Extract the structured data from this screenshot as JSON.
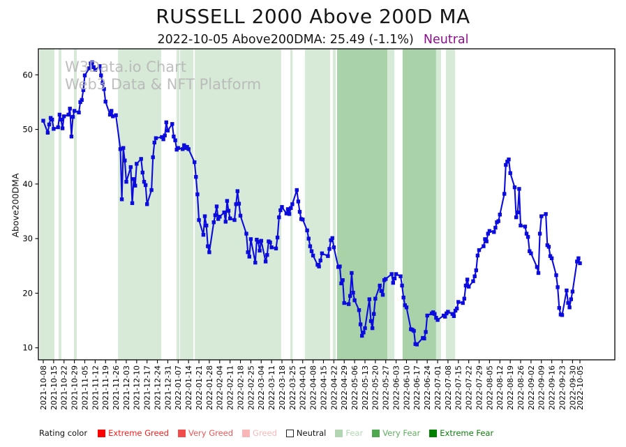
{
  "title": "RUSSELL 2000 Above 200D MA",
  "subtitle": {
    "text": "2022-10-05 Above200DMA: 25.49 (-1.1%)",
    "rating_label": "Neutral",
    "rating_color": "#8b0f8b"
  },
  "watermark": {
    "line1": "W3Data.io Chart",
    "line2": "Web3 Data & NFT Platform"
  },
  "axes": {
    "y_label": "Above200DMA",
    "y_ticks": [
      10,
      20,
      30,
      40,
      50,
      60
    ],
    "x_tick_labels": [
      "2021-10-08",
      "2021-10-15",
      "2021-10-22",
      "2021-10-29",
      "2021-11-05",
      "2021-11-12",
      "2021-11-19",
      "2021-11-26",
      "2021-12-03",
      "2021-12-10",
      "2021-12-17",
      "2021-12-24",
      "2021-12-31",
      "2022-01-07",
      "2022-01-14",
      "2022-01-21",
      "2022-01-28",
      "2022-02-04",
      "2022-02-11",
      "2022-02-18",
      "2022-02-25",
      "2022-03-04",
      "2022-03-11",
      "2022-03-18",
      "2022-03-25",
      "2022-04-01",
      "2022-04-08",
      "2022-04-15",
      "2022-04-22",
      "2022-04-29",
      "2022-05-06",
      "2022-05-13",
      "2022-05-20",
      "2022-05-27",
      "2022-06-03",
      "2022-06-10",
      "2022-06-17",
      "2022-06-24",
      "2022-07-01",
      "2022-07-08",
      "2022-07-15",
      "2022-07-22",
      "2022-07-29",
      "2022-08-05",
      "2022-08-12",
      "2022-08-19",
      "2022-08-26",
      "2022-09-02",
      "2022-09-09",
      "2022-09-16",
      "2022-09-23",
      "2022-09-30",
      "2022-10-05"
    ]
  },
  "legend": {
    "title": "Rating color",
    "items": [
      {
        "label": "Extreme Greed",
        "swatch": "#fe0000",
        "text_color": "#fe1a1a",
        "outlined": false
      },
      {
        "label": "Very Greed",
        "swatch": "#f24b4b",
        "text_color": "#f25555",
        "outlined": false
      },
      {
        "label": "Greed",
        "swatch": "#f9b6b6",
        "text_color": "#f9b6b6",
        "outlined": false
      },
      {
        "label": "Neutral",
        "swatch": "#ffffff",
        "text_color": "#111111",
        "outlined": true
      },
      {
        "label": "Fear",
        "swatch": "#b2d6b2",
        "text_color": "#b2d6b2",
        "outlined": false
      },
      {
        "label": "Very Fear",
        "swatch": "#4fa84f",
        "text_color": "#5fae5f",
        "outlined": false
      },
      {
        "label": "Extreme Fear",
        "swatch": "#008000",
        "text_color": "#0b800b",
        "outlined": false
      }
    ]
  },
  "chart_data": {
    "type": "line",
    "title": "RUSSELL 2000 Above 200D MA",
    "xlabel": "",
    "ylabel": "Above200DMA",
    "ylim": [
      7.8,
      64.8
    ],
    "x_unit": "days_since_2021-10-08",
    "last_point": {
      "date": "2022-10-05",
      "value": 25.49,
      "change_pct": -1.1,
      "rating": "Neutral"
    },
    "line_color": "#0b0bdd",
    "marker": "square",
    "grid": false,
    "band_colors": {
      "Fear": "#d7e9d7",
      "Very Fear": "#a9d2a9"
    },
    "background_bands": [
      {
        "start_day": -2.4,
        "end_day": 7.5,
        "rating": "Fear"
      },
      {
        "start_day": 10.4,
        "end_day": 12.2,
        "rating": "Fear"
      },
      {
        "start_day": 20.7,
        "end_day": 22.6,
        "rating": "Fear"
      },
      {
        "start_day": 50.4,
        "end_day": 79.6,
        "rating": "Fear"
      },
      {
        "start_day": 89.9,
        "end_day": 91.8,
        "rating": "Fear"
      },
      {
        "start_day": 92.3,
        "end_day": 101.2,
        "rating": "Fear"
      },
      {
        "start_day": 102.2,
        "end_day": 160.5,
        "rating": "Fear"
      },
      {
        "start_day": 166.6,
        "end_day": 168.2,
        "rating": "Fear"
      },
      {
        "start_day": 176.5,
        "end_day": 193.5,
        "rating": "Fear"
      },
      {
        "start_day": 195.3,
        "end_day": 197.3,
        "rating": "Fear"
      },
      {
        "start_day": 198.2,
        "end_day": 232.1,
        "rating": "Very Fear"
      },
      {
        "start_day": 232.1,
        "end_day": 236.8,
        "rating": "Fear"
      },
      {
        "start_day": 242.4,
        "end_day": 265.0,
        "rating": "Very Fear"
      },
      {
        "start_day": 265.0,
        "end_day": 268.3,
        "rating": "Fear"
      },
      {
        "start_day": 271.6,
        "end_day": 277.8,
        "rating": "Fear"
      }
    ],
    "points": [
      [
        0,
        51.6
      ],
      [
        3,
        49.4
      ],
      [
        4,
        50.9
      ],
      [
        5,
        52.1
      ],
      [
        6,
        51.8
      ],
      [
        7,
        50.1
      ],
      [
        10,
        50.4
      ],
      [
        11,
        52.7
      ],
      [
        12,
        51.8
      ],
      [
        13,
        50.2
      ],
      [
        14,
        52.4
      ],
      [
        17,
        52.7
      ],
      [
        18,
        53.8
      ],
      [
        19,
        48.7
      ],
      [
        20,
        52.3
      ],
      [
        21,
        53.4
      ],
      [
        24,
        53.1
      ],
      [
        25,
        55.0
      ],
      [
        26,
        55.4
      ],
      [
        27,
        57.2
      ],
      [
        28,
        59.9
      ],
      [
        31,
        61.2
      ],
      [
        32,
        62.1
      ],
      [
        33,
        62.3
      ],
      [
        34,
        61.4
      ],
      [
        35,
        60.9
      ],
      [
        38,
        61.6
      ],
      [
        39,
        59.9
      ],
      [
        40,
        58.5
      ],
      [
        41,
        57.4
      ],
      [
        42,
        55.1
      ],
      [
        45,
        52.7
      ],
      [
        46,
        53.4
      ],
      [
        47,
        52.4
      ],
      [
        49,
        52.6
      ],
      [
        52,
        46.4
      ],
      [
        53,
        37.2
      ],
      [
        54,
        46.6
      ],
      [
        55,
        44.3
      ],
      [
        56,
        40.4
      ],
      [
        59,
        43.1
      ],
      [
        60,
        36.5
      ],
      [
        61,
        40.9
      ],
      [
        62,
        39.7
      ],
      [
        63,
        43.7
      ],
      [
        66,
        44.6
      ],
      [
        67,
        42.1
      ],
      [
        68,
        40.4
      ],
      [
        69,
        39.8
      ],
      [
        70,
        36.3
      ],
      [
        73,
        38.9
      ],
      [
        74,
        44.9
      ],
      [
        75,
        47.6
      ],
      [
        76,
        48.4
      ],
      [
        80,
        48.6
      ],
      [
        81,
        48.2
      ],
      [
        82,
        48.9
      ],
      [
        83,
        51.3
      ],
      [
        84,
        49.8
      ],
      [
        87,
        51.0
      ],
      [
        88,
        48.7
      ],
      [
        89,
        48.0
      ],
      [
        90,
        46.3
      ],
      [
        91,
        46.6
      ],
      [
        94,
        46.4
      ],
      [
        95,
        47.1
      ],
      [
        96,
        46.6
      ],
      [
        97,
        46.8
      ],
      [
        98,
        46.4
      ],
      [
        102,
        44.0
      ],
      [
        103,
        41.3
      ],
      [
        104,
        38.1
      ],
      [
        105,
        33.4
      ],
      [
        108,
        30.7
      ],
      [
        109,
        34.1
      ],
      [
        110,
        32.4
      ],
      [
        111,
        28.6
      ],
      [
        112,
        27.5
      ],
      [
        115,
        33.0
      ],
      [
        116,
        34.3
      ],
      [
        117,
        35.9
      ],
      [
        118,
        33.6
      ],
      [
        119,
        34.0
      ],
      [
        122,
        34.8
      ],
      [
        123,
        33.1
      ],
      [
        124,
        36.9
      ],
      [
        125,
        35.1
      ],
      [
        126,
        33.7
      ],
      [
        129,
        33.4
      ],
      [
        130,
        36.3
      ],
      [
        131,
        38.7
      ],
      [
        132,
        36.4
      ],
      [
        133,
        34.2
      ],
      [
        137,
        30.9
      ],
      [
        138,
        27.5
      ],
      [
        139,
        26.7
      ],
      [
        140,
        29.9
      ],
      [
        143,
        25.6
      ],
      [
        144,
        29.8
      ],
      [
        145,
        29.4
      ],
      [
        146,
        27.8
      ],
      [
        147,
        29.6
      ],
      [
        150,
        25.8
      ],
      [
        151,
        27.0
      ],
      [
        152,
        29.5
      ],
      [
        153,
        29.3
      ],
      [
        154,
        28.4
      ],
      [
        157,
        28.2
      ],
      [
        158,
        30.2
      ],
      [
        159,
        33.9
      ],
      [
        160,
        35.2
      ],
      [
        161,
        35.8
      ],
      [
        164,
        34.6
      ],
      [
        165,
        35.4
      ],
      [
        166,
        34.5
      ],
      [
        167,
        35.6
      ],
      [
        168,
        36.3
      ],
      [
        171,
        38.9
      ],
      [
        172,
        36.8
      ],
      [
        173,
        34.9
      ],
      [
        174,
        33.6
      ],
      [
        175,
        33.5
      ],
      [
        178,
        31.5
      ],
      [
        179,
        30.0
      ],
      [
        180,
        28.6
      ],
      [
        181,
        27.7
      ],
      [
        182,
        26.9
      ],
      [
        185,
        25.2
      ],
      [
        186,
        24.9
      ],
      [
        187,
        26.0
      ],
      [
        188,
        27.3
      ],
      [
        192,
        26.8
      ],
      [
        193,
        28.1
      ],
      [
        194,
        29.7
      ],
      [
        195,
        30.1
      ],
      [
        196,
        28.4
      ],
      [
        199,
        24.8
      ],
      [
        200,
        24.9
      ],
      [
        201,
        21.8
      ],
      [
        202,
        22.4
      ],
      [
        203,
        18.2
      ],
      [
        206,
        18.0
      ],
      [
        207,
        19.5
      ],
      [
        208,
        23.7
      ],
      [
        209,
        20.1
      ],
      [
        210,
        18.7
      ],
      [
        213,
        16.9
      ],
      [
        214,
        14.3
      ],
      [
        215,
        12.2
      ],
      [
        216,
        12.8
      ],
      [
        217,
        13.6
      ],
      [
        220,
        18.9
      ],
      [
        221,
        14.9
      ],
      [
        222,
        13.6
      ],
      [
        223,
        16.2
      ],
      [
        224,
        19.0
      ],
      [
        227,
        21.4
      ],
      [
        228,
        20.4
      ],
      [
        229,
        19.7
      ],
      [
        230,
        22.4
      ],
      [
        231,
        22.6
      ],
      [
        235,
        23.5
      ],
      [
        236,
        21.9
      ],
      [
        237,
        22.7
      ],
      [
        238,
        23.5
      ],
      [
        241,
        23.1
      ],
      [
        242,
        21.4
      ],
      [
        243,
        19.2
      ],
      [
        244,
        17.8
      ],
      [
        245,
        17.4
      ],
      [
        248,
        13.4
      ],
      [
        249,
        13.3
      ],
      [
        250,
        13.1
      ],
      [
        251,
        10.7
      ],
      [
        252,
        10.6
      ],
      [
        256,
        11.8
      ],
      [
        257,
        11.7
      ],
      [
        258,
        12.9
      ],
      [
        259,
        15.9
      ],
      [
        262,
        16.3
      ],
      [
        263,
        16.5
      ],
      [
        264,
        16.2
      ],
      [
        265,
        15.5
      ],
      [
        266,
        15.1
      ],
      [
        270,
        15.9
      ],
      [
        271,
        15.7
      ],
      [
        272,
        16.3
      ],
      [
        273,
        16.6
      ],
      [
        276,
        16.2
      ],
      [
        277,
        15.8
      ],
      [
        278,
        16.8
      ],
      [
        279,
        17.2
      ],
      [
        280,
        18.4
      ],
      [
        283,
        18.2
      ],
      [
        284,
        19.0
      ],
      [
        285,
        21.4
      ],
      [
        286,
        22.5
      ],
      [
        287,
        21.2
      ],
      [
        290,
        22.2
      ],
      [
        291,
        23.1
      ],
      [
        292,
        24.2
      ],
      [
        293,
        26.9
      ],
      [
        294,
        27.9
      ],
      [
        297,
        28.6
      ],
      [
        298,
        29.9
      ],
      [
        299,
        29.5
      ],
      [
        300,
        30.9
      ],
      [
        301,
        31.4
      ],
      [
        304,
        31.2
      ],
      [
        305,
        32.0
      ],
      [
        306,
        33.0
      ],
      [
        307,
        33.2
      ],
      [
        308,
        34.4
      ],
      [
        311,
        38.2
      ],
      [
        312,
        43.5
      ],
      [
        313,
        44.1
      ],
      [
        314,
        44.5
      ],
      [
        315,
        42.0
      ],
      [
        318,
        39.4
      ],
      [
        319,
        33.9
      ],
      [
        320,
        34.8
      ],
      [
        321,
        39.1
      ],
      [
        322,
        32.4
      ],
      [
        325,
        32.2
      ],
      [
        326,
        30.9
      ],
      [
        327,
        30.3
      ],
      [
        328,
        27.7
      ],
      [
        329,
        27.3
      ],
      [
        333,
        24.8
      ],
      [
        334,
        23.7
      ],
      [
        335,
        30.9
      ],
      [
        336,
        34.1
      ],
      [
        339,
        34.5
      ],
      [
        340,
        28.8
      ],
      [
        341,
        28.5
      ],
      [
        342,
        26.8
      ],
      [
        343,
        26.4
      ],
      [
        346,
        23.3
      ],
      [
        347,
        21.1
      ],
      [
        348,
        17.3
      ],
      [
        349,
        16.1
      ],
      [
        350,
        16.0
      ],
      [
        353,
        20.5
      ],
      [
        354,
        18.2
      ],
      [
        355,
        17.4
      ],
      [
        356,
        18.9
      ],
      [
        357,
        20.3
      ],
      [
        360,
        25.8
      ],
      [
        361,
        26.4
      ],
      [
        362,
        25.49
      ]
    ]
  }
}
